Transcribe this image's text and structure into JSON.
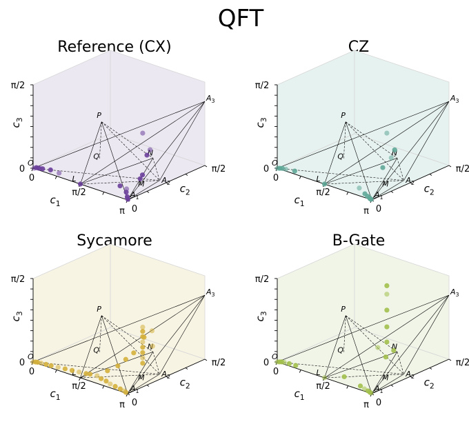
{
  "figure": {
    "title": "QFT"
  },
  "colors": {
    "edge": "#000000",
    "pane_edge": "#d6d6d6",
    "text": "#000000"
  },
  "axes_labels": {
    "c1": "c1",
    "c2": "c2",
    "c3": "c3",
    "c1_ticks": [
      "0",
      "π/2",
      "π"
    ],
    "c2_ticks": [
      "0",
      "π/2"
    ],
    "c3_ticks": [
      "0",
      "π/2"
    ]
  },
  "vertex_labels": {
    "O": "O",
    "A1": "A1",
    "A2": "A2",
    "A3": "A3",
    "L": "L",
    "M": "M",
    "N": "N",
    "P": "P",
    "Q": "Q"
  },
  "chart_data": [
    {
      "type": "scatter",
      "title": "Reference (CX)",
      "color": "#6b3f9b",
      "pane_color": "#ece8f2",
      "xlabel": "c1",
      "ylabel": "c2",
      "zlabel": "c3",
      "xlim": [
        0,
        3.1416
      ],
      "ylim": [
        0,
        1.5708
      ],
      "zlim": [
        0,
        1.5708
      ],
      "points": [
        [
          0.02,
          0.01,
          0.0
        ],
        [
          0.06,
          0.03,
          0.01
        ],
        [
          0.1,
          0.05,
          0.0
        ],
        [
          0.15,
          0.06,
          0.0
        ],
        [
          0.25,
          0.04,
          0.02
        ],
        [
          0.45,
          0.08,
          0.02
        ],
        [
          0.7,
          0.1,
          0.0
        ],
        [
          1.5708,
          0.0,
          0.0
        ],
        [
          2.4,
          0.3,
          0.0
        ],
        [
          2.7,
          0.25,
          0.02
        ],
        [
          2.9,
          0.12,
          0.05
        ],
        [
          3.0,
          0.08,
          0.0
        ],
        [
          3.05,
          0.05,
          0.0
        ],
        [
          3.12,
          0.02,
          0.0
        ],
        [
          2.48,
          0.66,
          0.0
        ],
        [
          2.45,
          0.88,
          0.45
        ],
        [
          2.28,
          0.92,
          0.3
        ],
        [
          2.36,
          0.78,
          0.0
        ],
        [
          2.36,
          0.785,
          0.785
        ]
      ]
    },
    {
      "type": "scatter",
      "title": "CZ",
      "color": "#5fa898",
      "pane_color": "#e6f2ef",
      "xlabel": "c1",
      "ylabel": "c2",
      "zlabel": "c3",
      "xlim": [
        0,
        3.1416
      ],
      "ylim": [
        0,
        1.5708
      ],
      "zlim": [
        0,
        1.5708
      ],
      "points": [
        [
          0.01,
          0.0,
          0.0
        ],
        [
          0.05,
          0.02,
          0.0
        ],
        [
          0.1,
          0.04,
          0.0
        ],
        [
          0.2,
          0.05,
          0.0
        ],
        [
          0.45,
          0.08,
          0.0
        ],
        [
          1.5708,
          0.0,
          0.0
        ],
        [
          2.4,
          0.2,
          0.0
        ],
        [
          2.75,
          0.1,
          0.0
        ],
        [
          2.9,
          0.06,
          0.0
        ],
        [
          3.0,
          0.04,
          0.0
        ],
        [
          3.05,
          0.02,
          0.0
        ],
        [
          3.1,
          0.01,
          0.0
        ],
        [
          2.4,
          0.85,
          0.3
        ],
        [
          2.35,
          0.95,
          0.4
        ],
        [
          2.2,
          0.8,
          0.1
        ],
        [
          2.36,
          0.785,
          0.785
        ]
      ]
    },
    {
      "type": "scatter",
      "title": "Sycamore",
      "color": "#d4b03c",
      "pane_color": "#f7f4e4",
      "xlabel": "c1",
      "ylabel": "c2",
      "zlabel": "c3",
      "xlim": [
        0,
        3.1416
      ],
      "ylim": [
        0,
        1.5708
      ],
      "zlim": [
        0,
        1.5708
      ],
      "points": [
        [
          0.0,
          0.0,
          0.0
        ],
        [
          0.05,
          0.02,
          0.0
        ],
        [
          0.1,
          0.03,
          0.0
        ],
        [
          0.2,
          0.04,
          0.0
        ],
        [
          0.35,
          0.05,
          0.0
        ],
        [
          0.5,
          0.06,
          0.0
        ],
        [
          0.7,
          0.08,
          0.0
        ],
        [
          0.9,
          0.1,
          0.0
        ],
        [
          1.1,
          0.12,
          0.0
        ],
        [
          1.3,
          0.14,
          0.0
        ],
        [
          1.5,
          0.16,
          0.0
        ],
        [
          1.6,
          0.18,
          0.0
        ],
        [
          1.8,
          0.2,
          0.0
        ],
        [
          2.0,
          0.16,
          0.0
        ],
        [
          2.2,
          0.14,
          0.0
        ],
        [
          2.4,
          0.1,
          0.0
        ],
        [
          2.6,
          0.08,
          0.0
        ],
        [
          2.8,
          0.06,
          0.0
        ],
        [
          2.95,
          0.04,
          0.0
        ],
        [
          3.05,
          0.02,
          0.0
        ],
        [
          2.36,
          0.785,
          0.1
        ],
        [
          2.36,
          0.785,
          0.2
        ],
        [
          2.36,
          0.785,
          0.3
        ],
        [
          2.36,
          0.785,
          0.4
        ],
        [
          2.36,
          0.785,
          0.5
        ],
        [
          2.36,
          0.785,
          0.6
        ],
        [
          2.36,
          0.785,
          0.7
        ],
        [
          2.36,
          0.785,
          0.78
        ],
        [
          2.2,
          0.7,
          0.3
        ],
        [
          2.1,
          0.6,
          0.2
        ],
        [
          2.5,
          0.9,
          0.4
        ],
        [
          2.3,
          0.85,
          0.55
        ],
        [
          2.0,
          0.5,
          0.1
        ],
        [
          2.4,
          0.95,
          0.65
        ],
        [
          1.9,
          0.35,
          0.05
        ]
      ]
    },
    {
      "type": "scatter",
      "title": "B-Gate",
      "color": "#a2c04b",
      "pane_color": "#f0f5e8",
      "xlabel": "c1",
      "ylabel": "c2",
      "zlabel": "c3",
      "xlim": [
        0,
        3.1416
      ],
      "ylim": [
        0,
        1.5708
      ],
      "zlim": [
        0,
        1.5708
      ],
      "points": [
        [
          0.0,
          0.0,
          0.0
        ],
        [
          0.04,
          0.02,
          0.0
        ],
        [
          0.08,
          0.04,
          0.0
        ],
        [
          0.15,
          0.05,
          0.0
        ],
        [
          0.3,
          0.06,
          0.0
        ],
        [
          0.5,
          0.07,
          0.0
        ],
        [
          1.5708,
          0.0,
          0.0
        ],
        [
          1.9,
          0.2,
          0.0
        ],
        [
          2.6,
          0.1,
          0.0
        ],
        [
          2.8,
          0.06,
          0.0
        ],
        [
          2.95,
          0.04,
          0.0
        ],
        [
          3.05,
          0.02,
          0.0
        ],
        [
          3.1,
          0.01,
          0.0
        ],
        [
          2.36,
          0.785,
          0.785
        ],
        [
          2.36,
          0.785,
          1.1
        ],
        [
          2.36,
          0.785,
          1.4
        ],
        [
          2.36,
          0.785,
          1.56
        ],
        [
          2.36,
          0.785,
          0.5
        ],
        [
          2.2,
          0.7,
          0.4
        ],
        [
          2.4,
          0.9,
          0.3
        ],
        [
          2.3,
          0.8,
          0.2
        ]
      ]
    }
  ]
}
